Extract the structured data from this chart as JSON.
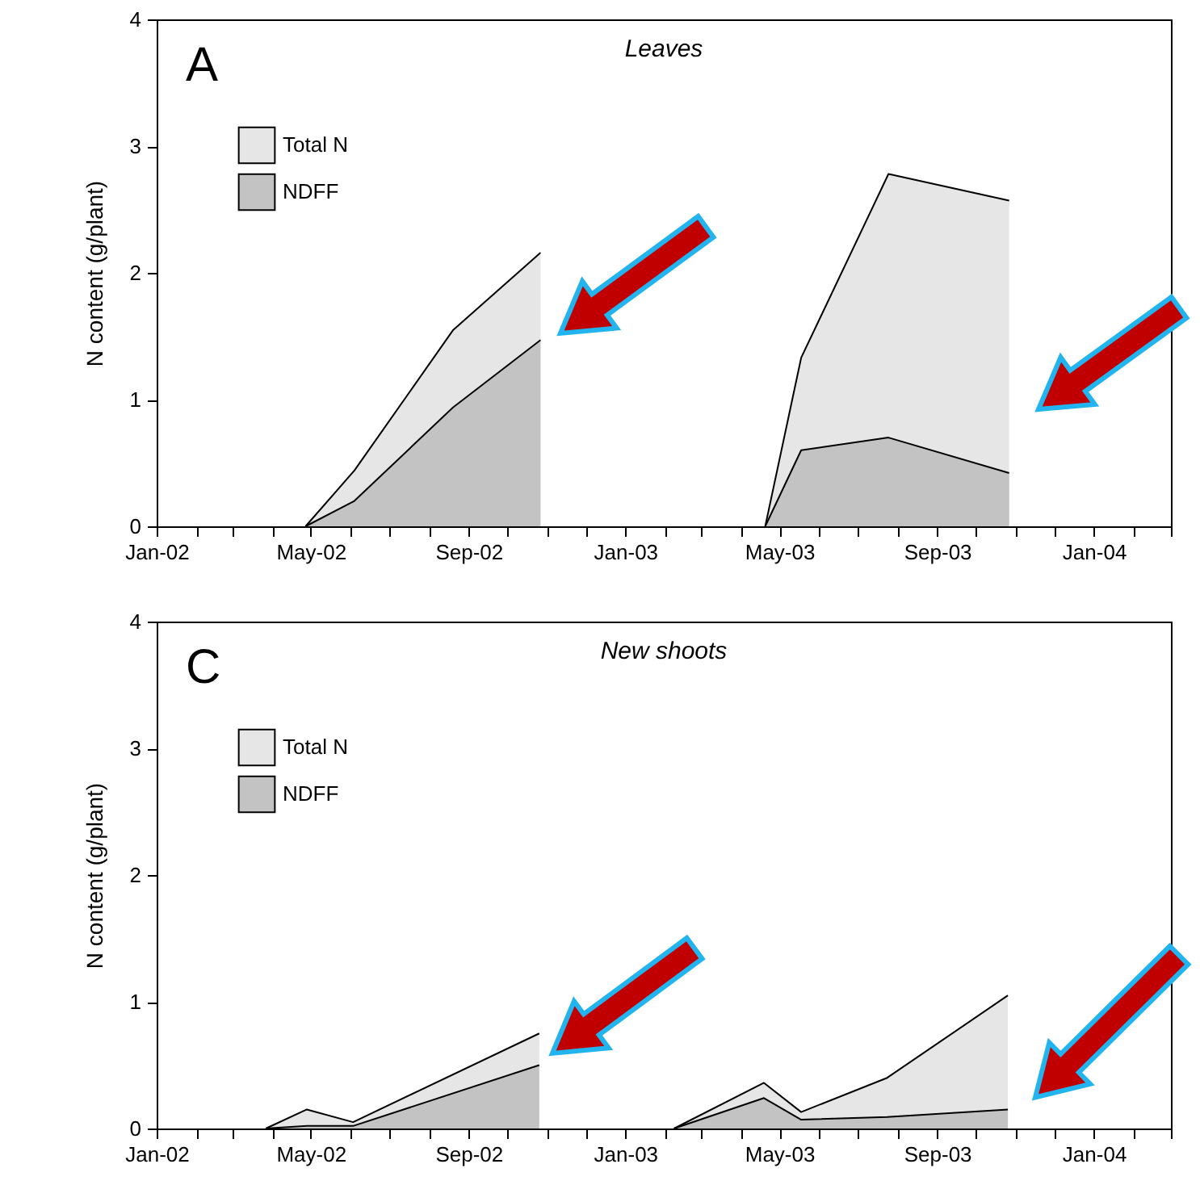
{
  "chart_data": [
    {
      "type": "area",
      "title": "Leaves",
      "ylabel": "N content (g/plant)",
      "annotations": [
        "A"
      ],
      "legend": "top left",
      "x": [
        "2002-04-27",
        "2002-06-04",
        "2002-08-20",
        "2002-10-27",
        "2003-01-15",
        "2003-04-20",
        "2003-05-18",
        "2003-07-25",
        "2003-10-27"
      ],
      "series": [
        {
          "name": "Total N",
          "color": "#e6e6e6",
          "values": [
            0,
            0.44,
            1.55,
            2.16,
            null,
            0,
            1.33,
            2.78,
            2.57
          ]
        },
        {
          "name": "NDFF",
          "color": "#c3c3c3",
          "values": [
            0,
            0.2,
            0.94,
            1.47,
            null,
            0,
            0.6,
            0.7,
            0.42
          ]
        }
      ],
      "xlim": [
        "2002-01-01",
        "2004-03-01"
      ],
      "xticks": [
        {
          "value": "2002-01",
          "label": "Jan-02"
        },
        {
          "value": "2002-02",
          "label": null
        },
        {
          "value": "2002-03",
          "label": null
        },
        {
          "value": "2002-04",
          "label": null
        },
        {
          "value": "2002-05",
          "label": "May-02"
        },
        {
          "value": "2002-06",
          "label": null
        },
        {
          "value": "2002-07",
          "label": null
        },
        {
          "value": "2002-08",
          "label": null
        },
        {
          "value": "2002-09",
          "label": "Sep-02"
        },
        {
          "value": "2002-10",
          "label": null
        },
        {
          "value": "2002-11",
          "label": null
        },
        {
          "value": "2002-12",
          "label": null
        },
        {
          "value": "2003-01",
          "label": "Jan-03"
        },
        {
          "value": "2003-02",
          "label": null
        },
        {
          "value": "2003-03",
          "label": null
        },
        {
          "value": "2003-04",
          "label": null
        },
        {
          "value": "2003-05",
          "label": "May-03"
        },
        {
          "value": "2003-06",
          "label": null
        },
        {
          "value": "2003-07",
          "label": null
        },
        {
          "value": "2003-08",
          "label": null
        },
        {
          "value": "2003-09",
          "label": "Sep-03"
        },
        {
          "value": "2003-10",
          "label": null
        },
        {
          "value": "2003-11",
          "label": null
        },
        {
          "value": "2003-12",
          "label": null
        },
        {
          "value": "2004-01",
          "label": "Jan-04"
        },
        {
          "value": "2004-02",
          "label": null
        },
        {
          "value": "2004-03",
          "label": null
        }
      ],
      "ylim": [
        0,
        4
      ],
      "yticks": [
        0,
        1,
        2,
        3,
        4
      ]
    },
    {
      "type": "area",
      "title": "New shoots",
      "ylabel": "N content (g/plant)",
      "annotations": [
        "C"
      ],
      "legend": "top left",
      "x": [
        "2002-03-27",
        "2002-04-28",
        "2002-06-03",
        "2002-10-26",
        "2003-01-01",
        "2003-02-08",
        "2003-04-19",
        "2003-05-18",
        "2003-07-24",
        "2003-10-26"
      ],
      "series": [
        {
          "name": "Total N",
          "color": "#e6e6e6",
          "values": [
            0,
            0.15,
            0.05,
            0.75,
            null,
            0,
            0.36,
            0.13,
            0.4,
            1.05
          ]
        },
        {
          "name": "NDFF",
          "color": "#c3c3c3",
          "values": [
            0,
            0.02,
            0.02,
            0.5,
            null,
            0,
            0.24,
            0.07,
            0.09,
            0.15
          ]
        }
      ],
      "xlim": [
        "2002-01-01",
        "2004-03-01"
      ],
      "xticks": [
        {
          "value": "2002-01",
          "label": "Jan-02"
        },
        {
          "value": "2002-02",
          "label": null
        },
        {
          "value": "2002-03",
          "label": null
        },
        {
          "value": "2002-04",
          "label": null
        },
        {
          "value": "2002-05",
          "label": "May-02"
        },
        {
          "value": "2002-06",
          "label": null
        },
        {
          "value": "2002-07",
          "label": null
        },
        {
          "value": "2002-08",
          "label": null
        },
        {
          "value": "2002-09",
          "label": "Sep-02"
        },
        {
          "value": "2002-10",
          "label": null
        },
        {
          "value": "2002-11",
          "label": null
        },
        {
          "value": "2002-12",
          "label": null
        },
        {
          "value": "2003-01",
          "label": "Jan-03"
        },
        {
          "value": "2003-02",
          "label": null
        },
        {
          "value": "2003-03",
          "label": null
        },
        {
          "value": "2003-04",
          "label": null
        },
        {
          "value": "2003-05",
          "label": "May-03"
        },
        {
          "value": "2003-06",
          "label": null
        },
        {
          "value": "2003-07",
          "label": null
        },
        {
          "value": "2003-08",
          "label": null
        },
        {
          "value": "2003-09",
          "label": "Sep-03"
        },
        {
          "value": "2003-10",
          "label": null
        },
        {
          "value": "2003-11",
          "label": null
        },
        {
          "value": "2003-12",
          "label": null
        },
        {
          "value": "2004-01",
          "label": "Jan-04"
        },
        {
          "value": "2004-02",
          "label": null
        },
        {
          "value": "2004-03",
          "label": null
        }
      ],
      "ylim": [
        0,
        4
      ],
      "yticks": [
        0,
        1,
        2,
        3,
        4
      ]
    }
  ]
}
